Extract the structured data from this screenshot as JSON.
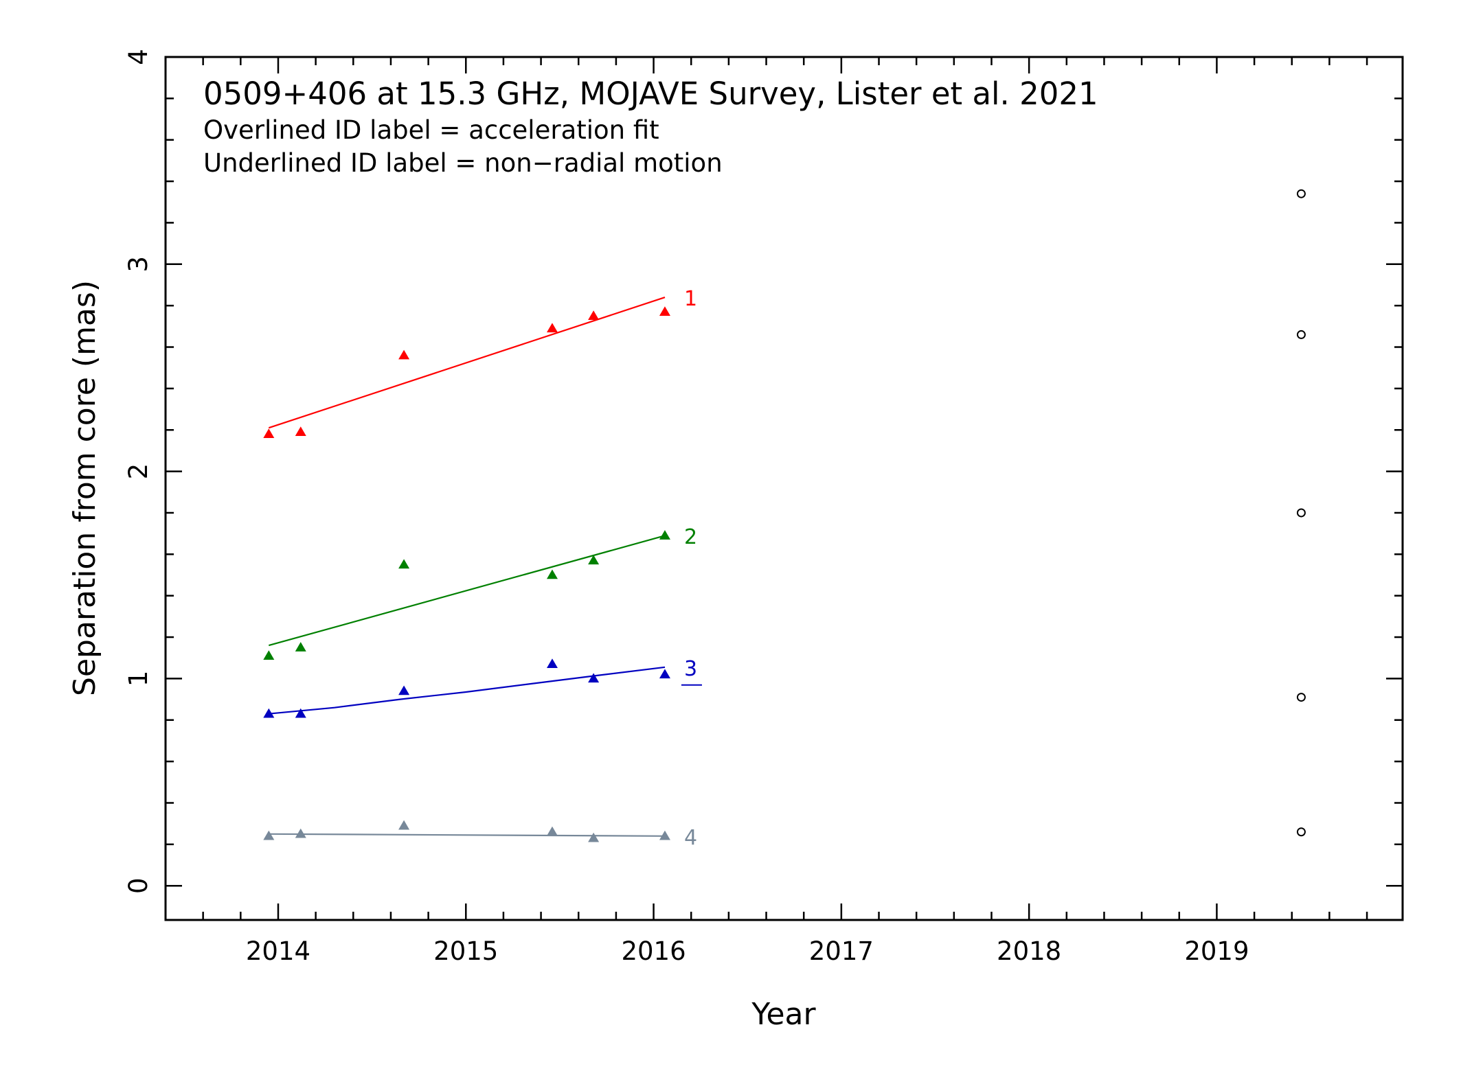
{
  "chart_data": {
    "type": "scatter",
    "title": "0509+406 at 15.3 GHz, MOJAVE Survey, Lister et al. 2021",
    "notes": [
      "Overlined ID label = acceleration fit",
      "Underlined ID label = non−radial motion"
    ],
    "xlabel": "Year",
    "ylabel": "Separation from core (mas)",
    "xlim": [
      2013.4,
      2019.99
    ],
    "ylim": [
      -0.165,
      4.0
    ],
    "xticks": [
      2014,
      2015,
      2016,
      2017,
      2018,
      2019
    ],
    "xtick_labels": [
      "2014",
      "2015",
      "2016",
      "2017",
      "2018",
      "2019"
    ],
    "yticks": [
      0,
      1,
      2,
      3,
      4
    ],
    "ytick_labels": [
      "0",
      "1",
      "2",
      "3",
      "4"
    ],
    "grid": false,
    "legend": "none",
    "series": [
      {
        "name": "1",
        "color": "#ff0000",
        "marker": "triangle",
        "underlined_label": false,
        "x": [
          2013.95,
          2014.12,
          2014.67,
          2015.46,
          2015.68,
          2016.06
        ],
        "y": [
          2.18,
          2.19,
          2.56,
          2.69,
          2.75,
          2.77
        ],
        "fit": {
          "x": [
            2013.95,
            2016.06
          ],
          "y": [
            2.21,
            2.84
          ]
        }
      },
      {
        "name": "2",
        "color": "#008000",
        "marker": "triangle",
        "underlined_label": false,
        "x": [
          2013.95,
          2014.12,
          2014.67,
          2015.46,
          2015.68,
          2016.06
        ],
        "y": [
          1.11,
          1.15,
          1.55,
          1.5,
          1.57,
          1.69
        ],
        "fit": {
          "x": [
            2013.95,
            2016.06
          ],
          "y": [
            1.16,
            1.69
          ]
        }
      },
      {
        "name": "3",
        "color": "#0000c0",
        "marker": "triangle",
        "underlined_label": true,
        "x": [
          2013.95,
          2014.12,
          2014.67,
          2015.46,
          2015.68,
          2016.06
        ],
        "y": [
          0.83,
          0.83,
          0.94,
          1.07,
          1.0,
          1.02
        ],
        "fit": {
          "x": [
            2013.95,
            2014.3,
            2014.65,
            2015.0,
            2015.35,
            2015.7,
            2016.06
          ],
          "y": [
            0.83,
            0.86,
            0.9,
            0.935,
            0.975,
            1.015,
            1.055
          ]
        }
      },
      {
        "name": "4",
        "color": "#778899",
        "marker": "triangle",
        "underlined_label": false,
        "x": [
          2013.95,
          2014.12,
          2014.67,
          2015.46,
          2015.68,
          2016.06
        ],
        "y": [
          0.24,
          0.25,
          0.29,
          0.26,
          0.23,
          0.24
        ],
        "fit": {
          "x": [
            2013.95,
            2016.06
          ],
          "y": [
            0.25,
            0.24
          ]
        }
      },
      {
        "name": "",
        "color": "#000000",
        "marker": "open-circle",
        "x": [
          2019.45,
          2019.45,
          2019.45,
          2019.45,
          2019.45
        ],
        "y": [
          3.34,
          2.66,
          1.8,
          0.91,
          0.26
        ]
      }
    ]
  }
}
